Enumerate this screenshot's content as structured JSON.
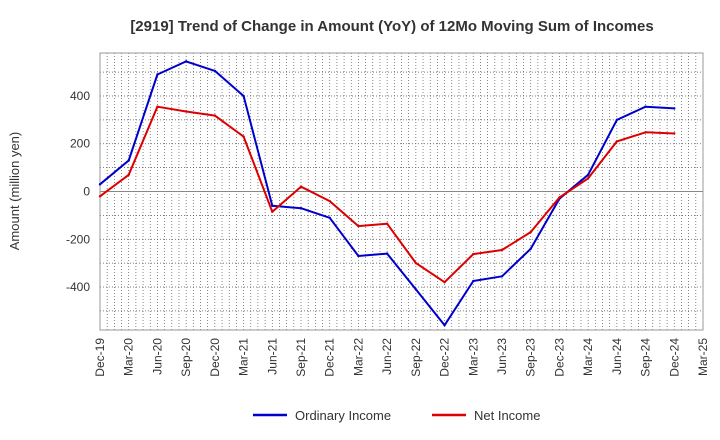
{
  "chart_data": {
    "type": "line",
    "title": "[2919]  Trend of Change in Amount (YoY) of 12Mo Moving Sum of Incomes",
    "xlabel": "",
    "ylabel": "Amount (million yen)",
    "categories": [
      "Dec-19",
      "Mar-20",
      "Jun-20",
      "Sep-20",
      "Dec-20",
      "Mar-21",
      "Jun-21",
      "Sep-21",
      "Dec-21",
      "Mar-22",
      "Jun-22",
      "Sep-22",
      "Dec-22",
      "Mar-23",
      "Jun-23",
      "Sep-23",
      "Dec-23",
      "Mar-24",
      "Jun-24",
      "Sep-24",
      "Dec-24",
      "Mar-25"
    ],
    "ylim": [
      -580,
      580
    ],
    "yticks": [
      -400,
      -200,
      0,
      200,
      400
    ],
    "ytick_labels": [
      "-400",
      "-200",
      "0",
      "200",
      "400"
    ],
    "grid": true,
    "legend_position": "bottom",
    "series": [
      {
        "name": "Ordinary Income",
        "color": "#0000cc",
        "values": [
          30,
          130,
          490,
          545,
          505,
          400,
          -60,
          -70,
          -110,
          -270,
          -260,
          -410,
          -560,
          -375,
          -355,
          -240,
          -30,
          70,
          300,
          355,
          348,
          null
        ]
      },
      {
        "name": "Net Income",
        "color": "#dd0000",
        "values": [
          -20,
          70,
          355,
          335,
          318,
          230,
          -85,
          20,
          -40,
          -145,
          -135,
          -300,
          -380,
          -262,
          -245,
          -170,
          -25,
          55,
          210,
          248,
          243,
          null
        ]
      }
    ]
  }
}
